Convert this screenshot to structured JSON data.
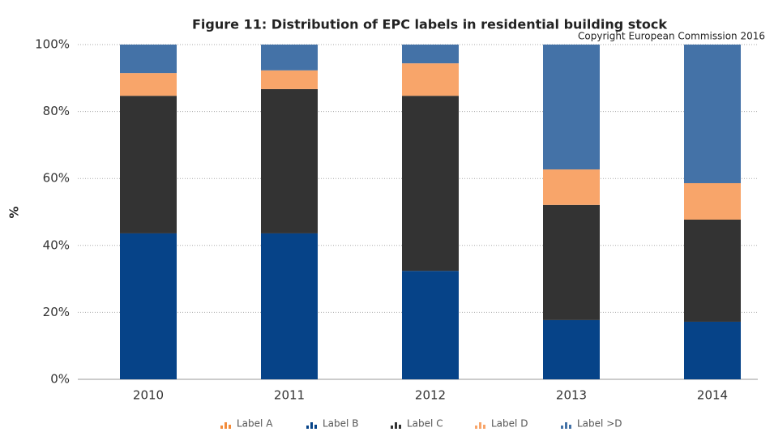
{
  "chart_data": {
    "type": "stacked_bar",
    "title": "Figure 11: Distribution of EPC labels in residential building stock",
    "subtitle": "Copyright European Commission 2016",
    "y_label": "%",
    "categories": [
      "2010",
      "2011",
      "2012",
      "2013",
      "2014"
    ],
    "series": [
      {
        "name": "Label A",
        "color": "#f28c3c",
        "values": [
          0,
          0,
          0,
          0,
          0
        ]
      },
      {
        "name": "Label B",
        "color": "#064388",
        "values": [
          43.6,
          43.6,
          32.4,
          17.7,
          17.2
        ]
      },
      {
        "name": "Label C",
        "color": "#333333",
        "values": [
          41.1,
          43.1,
          52.3,
          34.4,
          30.5
        ]
      },
      {
        "name": "Label D",
        "color": "#f8a56a",
        "values": [
          6.8,
          5.6,
          9.7,
          10.6,
          10.9
        ]
      },
      {
        "name": "Label >D",
        "color": "#4472a7",
        "values": [
          8.5,
          7.7,
          5.6,
          37.3,
          41.4
        ]
      }
    ],
    "ylim": [
      0,
      100
    ],
    "yticks": [
      {
        "value": 0,
        "label": "0%"
      },
      {
        "value": 20,
        "label": "20%"
      },
      {
        "value": 40,
        "label": "40%"
      },
      {
        "value": 60,
        "label": "60%"
      },
      {
        "value": 80,
        "label": "80%"
      },
      {
        "value": 100,
        "label": "100%"
      }
    ],
    "grid": true
  }
}
